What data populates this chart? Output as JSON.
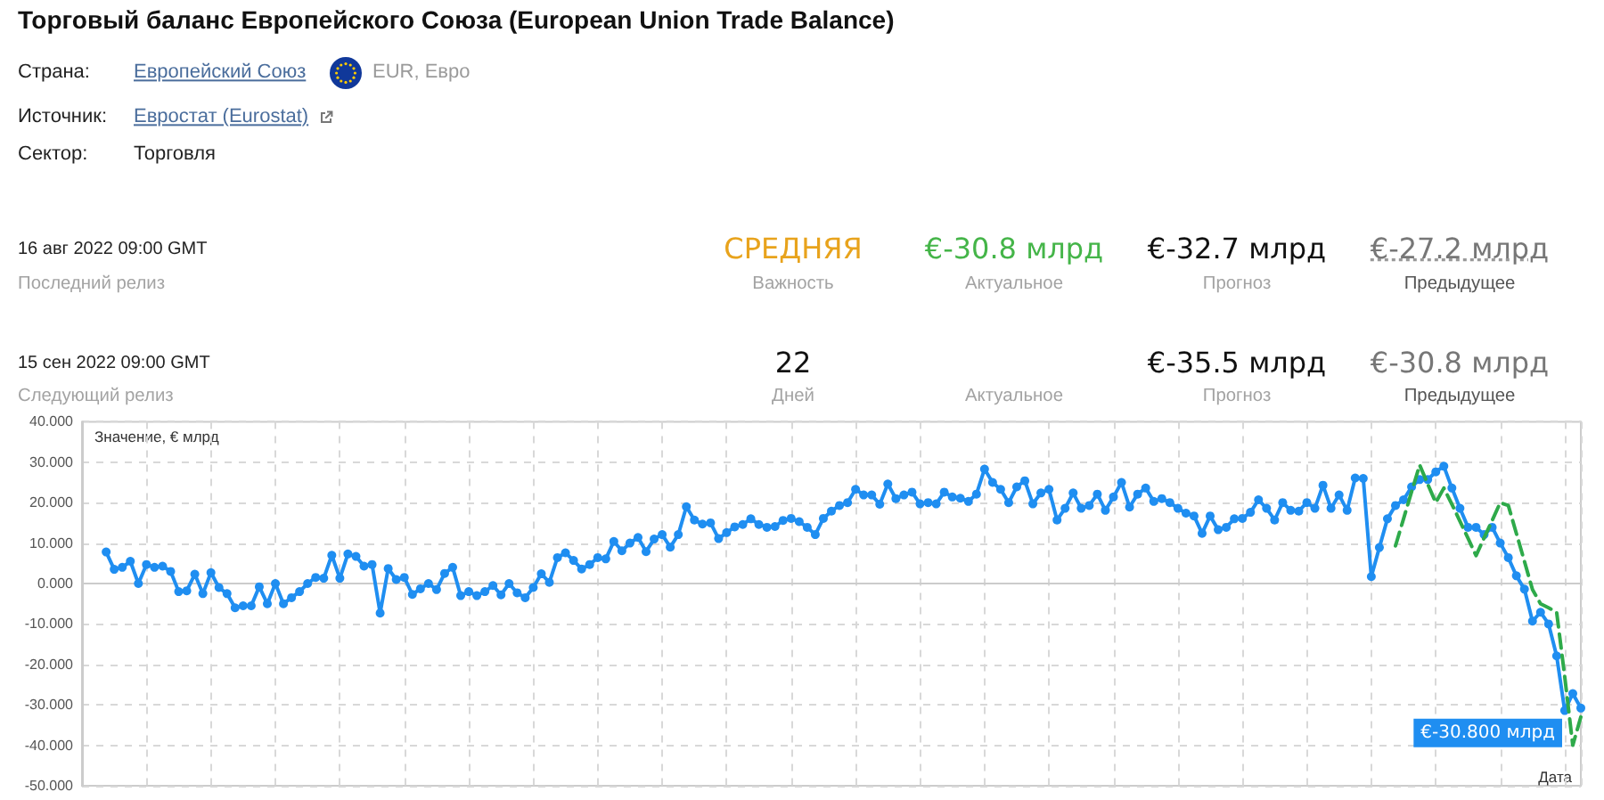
{
  "chart_data": {
    "type": "line",
    "title": "Торговый баланс Европейского Союза (European Union Trade Balance)",
    "annotations": [
      "Страна:",
      "Европейский Союз",
      "EUR, Евро",
      "Источник:",
      "Евростат (Eurostat)",
      "Сектор:",
      "Торговля",
      "16 авг 2022 09:00 GMT",
      "Последний релиз",
      "СРЕДНЯЯ",
      "Важность",
      "€-30.8 млрд",
      "Актуальное",
      "€-32.7 млрд",
      "Прогноз",
      "€-27.2 млрд",
      "Предыдущее",
      "15 сен 2022 09:00 GMT",
      "Следующий релиз",
      "22",
      "Дней",
      "Актуальное",
      "€-35.5 млрд",
      "Прогноз",
      "€-30.8 млрд",
      "Предыдущее"
    ],
    "xlabel": "Дата",
    "ylabel": "Значение, € млрд",
    "categories": [
      null,
      null,
      null,
      null,
      null,
      null,
      null,
      null,
      null,
      null,
      null,
      null,
      null,
      null,
      null,
      null,
      null,
      null,
      null,
      null,
      null,
      null,
      null,
      null,
      null,
      null,
      null,
      null,
      null,
      null,
      null,
      null,
      null,
      null,
      null,
      null,
      null,
      null,
      null,
      null,
      null,
      null,
      null,
      null,
      null,
      null,
      null,
      null,
      null,
      null,
      null,
      null,
      null,
      null,
      null,
      null,
      null,
      null,
      null,
      null,
      null,
      null,
      null,
      null,
      null,
      null,
      null,
      null,
      null,
      null,
      null,
      null,
      null,
      null,
      null,
      null,
      null,
      null,
      null,
      null,
      null,
      null,
      null,
      null,
      null,
      null,
      null,
      null,
      null,
      null,
      null,
      null,
      null,
      null,
      null,
      null,
      null,
      null,
      null,
      null,
      null,
      null,
      null,
      null,
      null,
      null,
      null,
      null,
      null,
      null,
      null,
      null,
      null,
      null,
      null,
      null,
      null,
      null,
      null,
      null,
      null,
      null,
      null,
      null,
      null,
      null,
      null,
      null,
      null,
      null,
      null,
      null,
      null,
      null,
      null,
      null,
      null,
      null,
      null,
      null,
      null,
      null,
      null,
      null,
      null,
      null,
      null,
      null,
      null,
      null,
      null,
      null,
      null,
      null,
      null,
      null,
      null,
      null,
      null,
      null,
      null,
      null,
      null,
      null,
      null,
      null,
      null,
      null,
      null,
      null,
      null,
      null,
      null,
      null,
      null,
      null,
      null,
      null,
      null,
      null,
      null,
      null,
      null,
      null,
      null,
      null,
      null
    ],
    "series": [
      {
        "color": "#1f8ef1",
        "marker": "circle",
        "line_style": "solid",
        "values": [
          null,
          null,
          null,
          7.8,
          3.5,
          4.0,
          5.5,
          0.0,
          4.7,
          4.0,
          4.3,
          3.0,
          -2.0,
          -1.8,
          2.3,
          -2.5,
          2.7,
          -1.0,
          -2.5,
          -6.0,
          -5.5,
          -5.5,
          -0.8,
          -5.0,
          0.0,
          -5.0,
          -3.5,
          -2.0,
          0.0,
          1.5,
          1.3,
          7.0,
          1.3,
          7.3,
          6.7,
          4.3,
          4.7,
          -7.3,
          3.7,
          1.0,
          1.5,
          -2.7,
          -1.3,
          0.0,
          -1.5,
          2.5,
          4.0,
          -3.0,
          -2.0,
          -3.0,
          -2.0,
          -0.5,
          -2.8,
          0.0,
          -2.3,
          -3.5,
          -1.0,
          2.4,
          0.3,
          6.4,
          7.6,
          5.7,
          3.6,
          4.7,
          6.4,
          6.1,
          10.4,
          8.1,
          10.0,
          11.4,
          7.9,
          11.0,
          12.1,
          9.0,
          12.1,
          19.0,
          15.7,
          14.7,
          15.0,
          11.1,
          12.6,
          14.0,
          14.6,
          16.0,
          14.6,
          13.9,
          14.1,
          15.6,
          16.1,
          15.3,
          13.9,
          12.1,
          16.1,
          17.9,
          19.3,
          20.0,
          23.3,
          21.9,
          21.9,
          19.6,
          24.6,
          21.0,
          21.9,
          22.6,
          19.7,
          20.0,
          19.7,
          22.6,
          21.4,
          21.1,
          20.3,
          22.1,
          28.3,
          25.0,
          23.3,
          20.0,
          23.9,
          25.4,
          19.7,
          22.4,
          23.3,
          15.7,
          18.6,
          22.4,
          18.6,
          19.3,
          22.1,
          18.1,
          21.4,
          25.0,
          18.9,
          22.1,
          23.6,
          20.3,
          21.0,
          20.0,
          18.6,
          17.4,
          16.7,
          12.4,
          16.7,
          13.3,
          13.9,
          16.0,
          16.1,
          17.6,
          20.7,
          18.6,
          15.7,
          20.0,
          18.1,
          17.9,
          20.0,
          18.6,
          24.3,
          18.6,
          21.9,
          18.1,
          26.1,
          26.0,
          1.7,
          8.9,
          16.0,
          19.3,
          20.7,
          23.9,
          25.7,
          25.7,
          27.6,
          29.0,
          23.6,
          18.6,
          13.9,
          13.9,
          12.1,
          13.9,
          10.0,
          6.4,
          1.9,
          -1.4,
          -9.3,
          -7.1,
          -10.0,
          -17.9,
          -31.4,
          -27.2,
          -30.8
        ],
        "value_labels": [
          null,
          null,
          null,
          null,
          null,
          null,
          null,
          null,
          null,
          null,
          null,
          null,
          null,
          null,
          null,
          null,
          null,
          null,
          null,
          null,
          null,
          null,
          null,
          null,
          null,
          null,
          null,
          null,
          null,
          null,
          null,
          null,
          null,
          null,
          null,
          null,
          null,
          null,
          null,
          null,
          null,
          null,
          null,
          null,
          null,
          null,
          null,
          null,
          null,
          null,
          null,
          null,
          null,
          null,
          null,
          null,
          null,
          null,
          null,
          null,
          null,
          null,
          null,
          null,
          null,
          null,
          null,
          null,
          null,
          null,
          null,
          null,
          null,
          null,
          null,
          null,
          null,
          null,
          null,
          null,
          null,
          null,
          null,
          null,
          null,
          null,
          null,
          null,
          null,
          null,
          null,
          null,
          null,
          null,
          null,
          null,
          null,
          null,
          null,
          null,
          null,
          null,
          null,
          null,
          null,
          null,
          null,
          null,
          null,
          null,
          null,
          null,
          null,
          null,
          null,
          null,
          null,
          null,
          null,
          null,
          null,
          null,
          null,
          null,
          null,
          null,
          null,
          null,
          null,
          null,
          null,
          null,
          null,
          null,
          null,
          null,
          null,
          null,
          null,
          null,
          null,
          null,
          null,
          null,
          null,
          null,
          null,
          null,
          null,
          null,
          null,
          null,
          null,
          null,
          null,
          null,
          null,
          null,
          null,
          null,
          null,
          null,
          null,
          null,
          null,
          null,
          null,
          null,
          null,
          null,
          null,
          null,
          null,
          null,
          null,
          null,
          null,
          null,
          null,
          null,
          null,
          null,
          null,
          null,
          null,
          null,
          "€-30.800 млрд"
        ]
      },
      {
        "color": "#2eaa4a",
        "marker": "none",
        "line_style": "dashed",
        "values": [
          null,
          null,
          null,
          null,
          null,
          null,
          null,
          null,
          null,
          null,
          null,
          null,
          null,
          null,
          null,
          null,
          null,
          null,
          null,
          null,
          null,
          null,
          null,
          null,
          null,
          null,
          null,
          null,
          null,
          null,
          null,
          null,
          null,
          null,
          null,
          null,
          null,
          null,
          null,
          null,
          null,
          null,
          null,
          null,
          null,
          null,
          null,
          null,
          null,
          null,
          null,
          null,
          null,
          null,
          null,
          null,
          null,
          null,
          null,
          null,
          null,
          null,
          null,
          null,
          null,
          null,
          null,
          null,
          null,
          null,
          null,
          null,
          null,
          null,
          null,
          null,
          null,
          null,
          null,
          null,
          null,
          null,
          null,
          null,
          null,
          null,
          null,
          null,
          null,
          null,
          null,
          null,
          null,
          null,
          null,
          null,
          null,
          null,
          null,
          null,
          null,
          null,
          null,
          null,
          null,
          null,
          null,
          null,
          null,
          null,
          null,
          null,
          null,
          null,
          null,
          null,
          null,
          null,
          null,
          null,
          null,
          null,
          null,
          null,
          null,
          null,
          null,
          null,
          null,
          null,
          null,
          null,
          null,
          null,
          null,
          null,
          null,
          null,
          null,
          null,
          null,
          null,
          null,
          null,
          null,
          null,
          null,
          null,
          null,
          null,
          null,
          null,
          null,
          null,
          null,
          null,
          null,
          null,
          null,
          null,
          null,
          null,
          null,
          9.3,
          16.0,
          22.7,
          29.3,
          24.6,
          20.0,
          23.6,
          19.6,
          15.4,
          11.2,
          6.9,
          11.3,
          15.6,
          20.0,
          19.3,
          12.4,
          5.5,
          -1.5,
          -5.0,
          -6.0,
          -7.1,
          -23.0,
          -40.0,
          -33.0
        ]
      }
    ],
    "ylim": [
      -50,
      40
    ],
    "yticks": [
      {
        "value": -50,
        "label": "-50.000"
      },
      {
        "value": -40,
        "label": "-40.000"
      },
      {
        "value": -30,
        "label": "-30.000"
      },
      {
        "value": -20,
        "label": "-20.000"
      },
      {
        "value": -10,
        "label": "-10.000"
      },
      {
        "value": 0,
        "label": "0.000"
      },
      {
        "value": 10,
        "label": "10.000"
      },
      {
        "value": 20,
        "label": "20.000"
      },
      {
        "value": 30,
        "label": "30.000"
      },
      {
        "value": 40,
        "label": "40.000"
      }
    ],
    "grid": true
  }
}
